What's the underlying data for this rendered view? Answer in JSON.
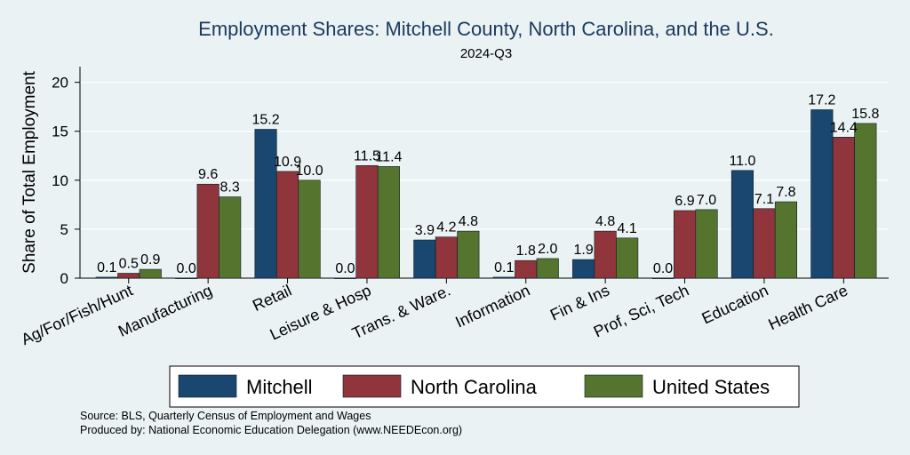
{
  "chart_data": {
    "type": "bar",
    "title": "Employment Shares: Mitchell County, North Carolina, and the U.S.",
    "subtitle": "2024-Q3",
    "xlabel": "",
    "ylabel": "Share of Total Employment",
    "ylim": [
      0,
      21.6
    ],
    "yticks": [
      "0",
      "5",
      "10",
      "15",
      "20"
    ],
    "ytick_values": [
      0,
      5,
      10,
      15,
      20
    ],
    "grid": true,
    "legend_position": "bottom",
    "categories": [
      "Ag/For/Fish/Hunt",
      "Manufacturing",
      "Retail",
      "Leisure & Hosp",
      "Trans. & Ware.",
      "Information",
      "Fin & Ins",
      "Prof, Sci, Tech",
      "Education",
      "Health Care"
    ],
    "series": [
      {
        "name": "Mitchell",
        "color": "#1a476f",
        "values": [
          0.1,
          0.0,
          15.2,
          0.0,
          3.9,
          0.1,
          1.9,
          0.0,
          11.0,
          17.2
        ],
        "labels": [
          "0.1",
          "0.0",
          "15.2",
          "0.0",
          "3.9",
          "0.1",
          "1.9",
          "0.0",
          "11.0",
          "17.2"
        ]
      },
      {
        "name": "North Carolina",
        "color": "#90353b",
        "values": [
          0.5,
          9.6,
          10.9,
          11.5,
          4.2,
          1.8,
          4.8,
          6.9,
          7.1,
          14.4
        ],
        "labels": [
          "0.5",
          "9.6",
          "10.9",
          "11.5",
          "4.2",
          "1.8",
          "4.8",
          "6.9",
          "7.1",
          "14.4"
        ]
      },
      {
        "name": "United States",
        "color": "#55752f",
        "values": [
          0.9,
          8.3,
          10.0,
          11.4,
          4.8,
          2.0,
          4.1,
          7.0,
          7.8,
          15.8
        ],
        "labels": [
          "0.9",
          "8.3",
          "10.0",
          "11.4",
          "4.8",
          "2.0",
          "4.1",
          "7.0",
          "7.8",
          "15.8"
        ]
      }
    ]
  },
  "notes": {
    "source": "Source: BLS, Quarterly Census of Employment and Wages",
    "produced_by": "Produced by: National Economic Education Delegation (www.NEEDEcon.org)"
  }
}
